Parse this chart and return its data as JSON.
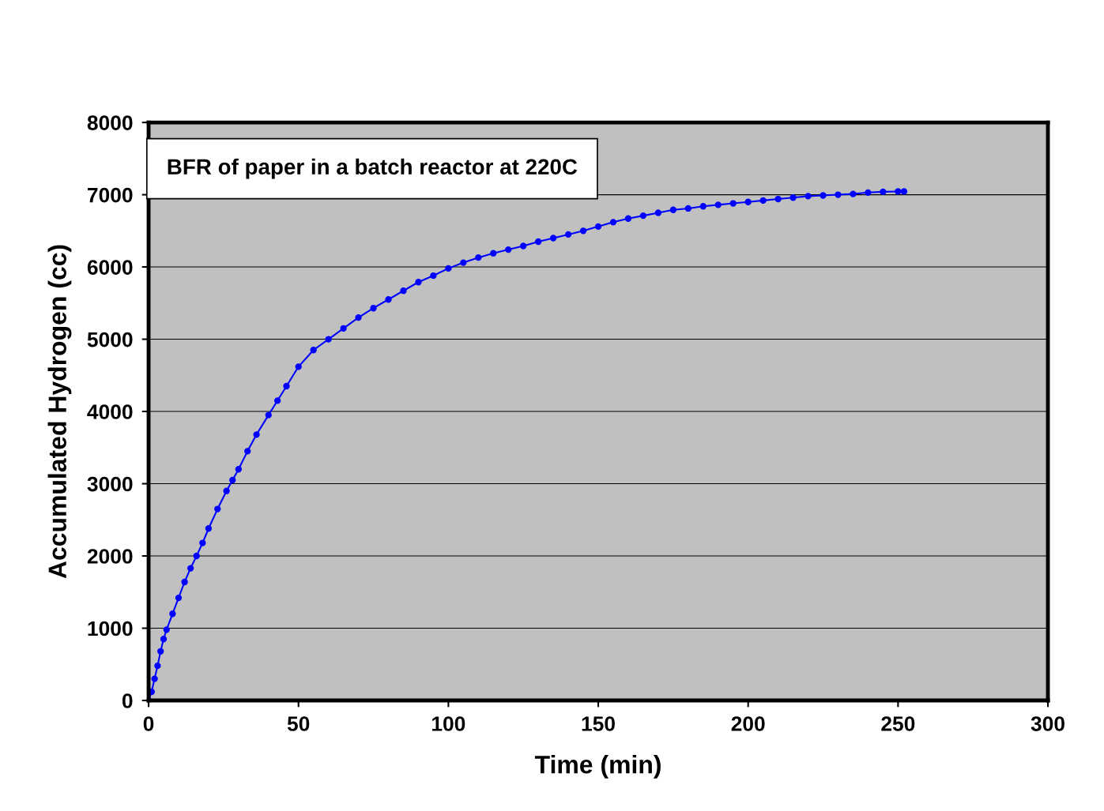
{
  "chart_data": {
    "type": "line",
    "title": "BFR of paper in a batch reactor at 220C",
    "xlabel": "Time (min)",
    "ylabel": "Accumulated Hydrogen (cc)",
    "x": [
      0,
      1,
      2,
      3,
      4,
      5,
      6,
      8,
      10,
      12,
      14,
      16,
      18,
      20,
      23,
      26,
      28,
      30,
      33,
      36,
      40,
      43,
      46,
      50,
      55,
      60,
      65,
      70,
      75,
      80,
      85,
      90,
      95,
      100,
      105,
      110,
      115,
      120,
      125,
      130,
      135,
      140,
      145,
      150,
      155,
      160,
      165,
      170,
      175,
      180,
      185,
      190,
      195,
      200,
      205,
      210,
      215,
      220,
      225,
      230,
      235,
      240,
      245,
      250,
      252
    ],
    "series": [
      {
        "color": "#0000ff",
        "values": [
          0,
          120,
          300,
          480,
          680,
          850,
          980,
          1200,
          1420,
          1640,
          1830,
          2000,
          2180,
          2380,
          2650,
          2900,
          3050,
          3200,
          3450,
          3680,
          3950,
          4150,
          4350,
          4620,
          4850,
          5000,
          5150,
          5300,
          5430,
          5550,
          5670,
          5790,
          5880,
          5980,
          6060,
          6130,
          6190,
          6240,
          6290,
          6350,
          6400,
          6450,
          6500,
          6560,
          6620,
          6670,
          6710,
          6750,
          6790,
          6810,
          6840,
          6860,
          6880,
          6900,
          6920,
          6940,
          6960,
          6980,
          6990,
          7000,
          7010,
          7030,
          7040,
          7045,
          7045
        ]
      }
    ],
    "xlim": [
      0,
      300
    ],
    "xticks": [
      0,
      50,
      100,
      150,
      200,
      250,
      300
    ],
    "ylim": [
      0,
      8000
    ],
    "yticks": [
      0,
      1000,
      2000,
      3000,
      4000,
      5000,
      6000,
      7000,
      8000
    ],
    "grid": "y",
    "marker": "circle",
    "line_style": "solid",
    "legend": false
  }
}
